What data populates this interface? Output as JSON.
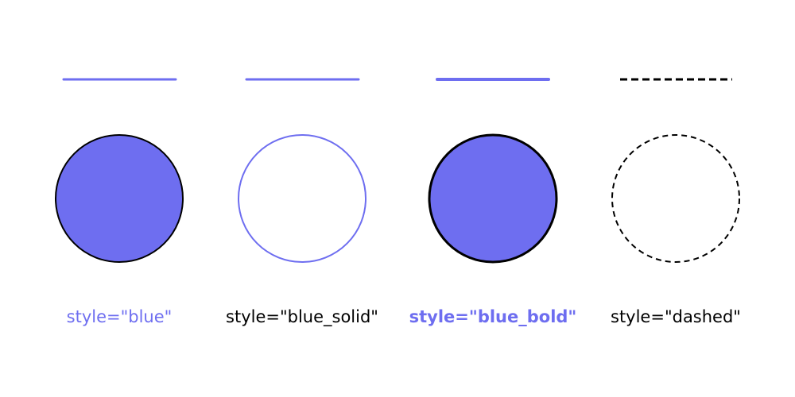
{
  "colors": {
    "accent": "#6e6ef0",
    "ink": "#000000",
    "background": "#ffffff"
  },
  "items": [
    {
      "label": "style=\"blue\"",
      "style": "blue"
    },
    {
      "label": "style=\"blue_solid\"",
      "style": "blue_solid"
    },
    {
      "label": "style=\"blue_bold\"",
      "style": "blue_bold"
    },
    {
      "label": "style=\"dashed\"",
      "style": "dashed"
    }
  ]
}
